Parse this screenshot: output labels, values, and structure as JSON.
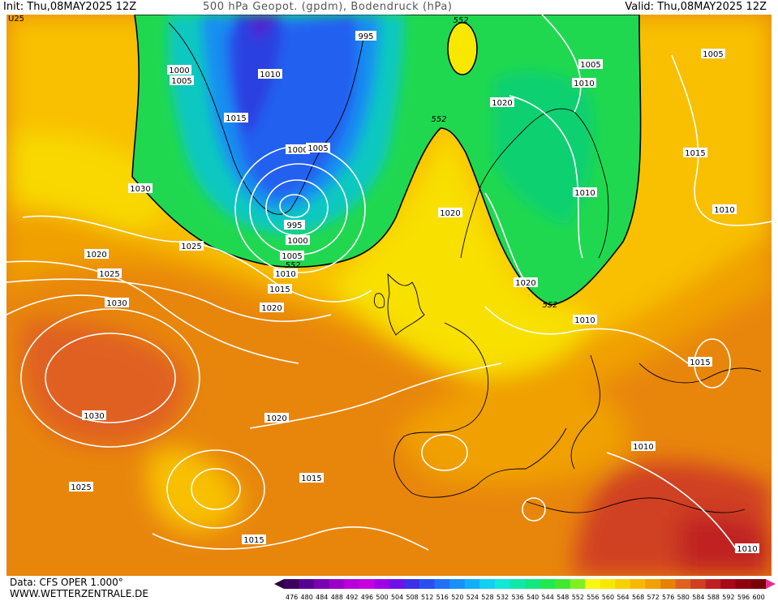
{
  "header": {
    "init": "Init: Thu,08MAY2025 12Z",
    "title": "500 hPa Geopot. (gpdm), Bodendruck (hPa)",
    "valid": "Valid: Thu,08MAY2025 12Z"
  },
  "footer": {
    "source": "Data: CFS OPER 1.000°",
    "website": "WWW.WETTERZENTRALE.DE"
  },
  "colorbar": {
    "ticks": [
      "476",
      "480",
      "484",
      "488",
      "492",
      "496",
      "500",
      "504",
      "508",
      "512",
      "516",
      "520",
      "524",
      "528",
      "532",
      "536",
      "540",
      "544",
      "548",
      "552",
      "556",
      "560",
      "564",
      "568",
      "572",
      "576",
      "580",
      "584",
      "588",
      "592",
      "596",
      "600"
    ],
    "colors": [
      "#3c0060",
      "#5a0090",
      "#7a00b0",
      "#9a00c8",
      "#b800d8",
      "#c800e0",
      "#a000e8",
      "#7010e8",
      "#3c30e8",
      "#2850f0",
      "#2070f8",
      "#1890f8",
      "#10b0f8",
      "#10d0f0",
      "#10e8d8",
      "#10e8a8",
      "#10e880",
      "#20e850",
      "#40e830",
      "#80f020",
      "#f8f810",
      "#f8e800",
      "#f8d000",
      "#f8b800",
      "#f0a000",
      "#e88000",
      "#e06020",
      "#d04020",
      "#c02020",
      "#a80818",
      "#900010",
      "#780008"
    ],
    "underflow_color": "#2a0040",
    "overflow_color": "#e8308a"
  },
  "map": {
    "corner_label": "U25",
    "isobar_labels": [
      {
        "text": "995"
      },
      {
        "text": "1000"
      },
      {
        "text": "1005"
      },
      {
        "text": "1010"
      },
      {
        "text": "1015"
      },
      {
        "text": "1005"
      },
      {
        "text": "1010"
      },
      {
        "text": "1020"
      },
      {
        "text": "1005"
      },
      {
        "text": "1010"
      },
      {
        "text": "1030"
      },
      {
        "text": "1025"
      },
      {
        "text": "1020"
      },
      {
        "text": "1025"
      },
      {
        "text": "1030"
      },
      {
        "text": "1030"
      },
      {
        "text": "1025"
      },
      {
        "text": "1000"
      },
      {
        "text": "1005"
      },
      {
        "text": "995"
      },
      {
        "text": "1000"
      },
      {
        "text": "1005"
      },
      {
        "text": "1010"
      },
      {
        "text": "1015"
      },
      {
        "text": "1020"
      },
      {
        "text": "1020"
      },
      {
        "text": "1020"
      },
      {
        "text": "1010"
      },
      {
        "text": "1015"
      },
      {
        "text": "1020"
      },
      {
        "text": "1015"
      },
      {
        "text": "1015"
      },
      {
        "text": "1010"
      },
      {
        "text": "1010"
      },
      {
        "text": "1010"
      },
      {
        "text": "1015"
      }
    ],
    "height_labels": [
      {
        "text": "552"
      },
      {
        "text": "552"
      },
      {
        "text": "552"
      },
      {
        "text": "552"
      }
    ]
  }
}
